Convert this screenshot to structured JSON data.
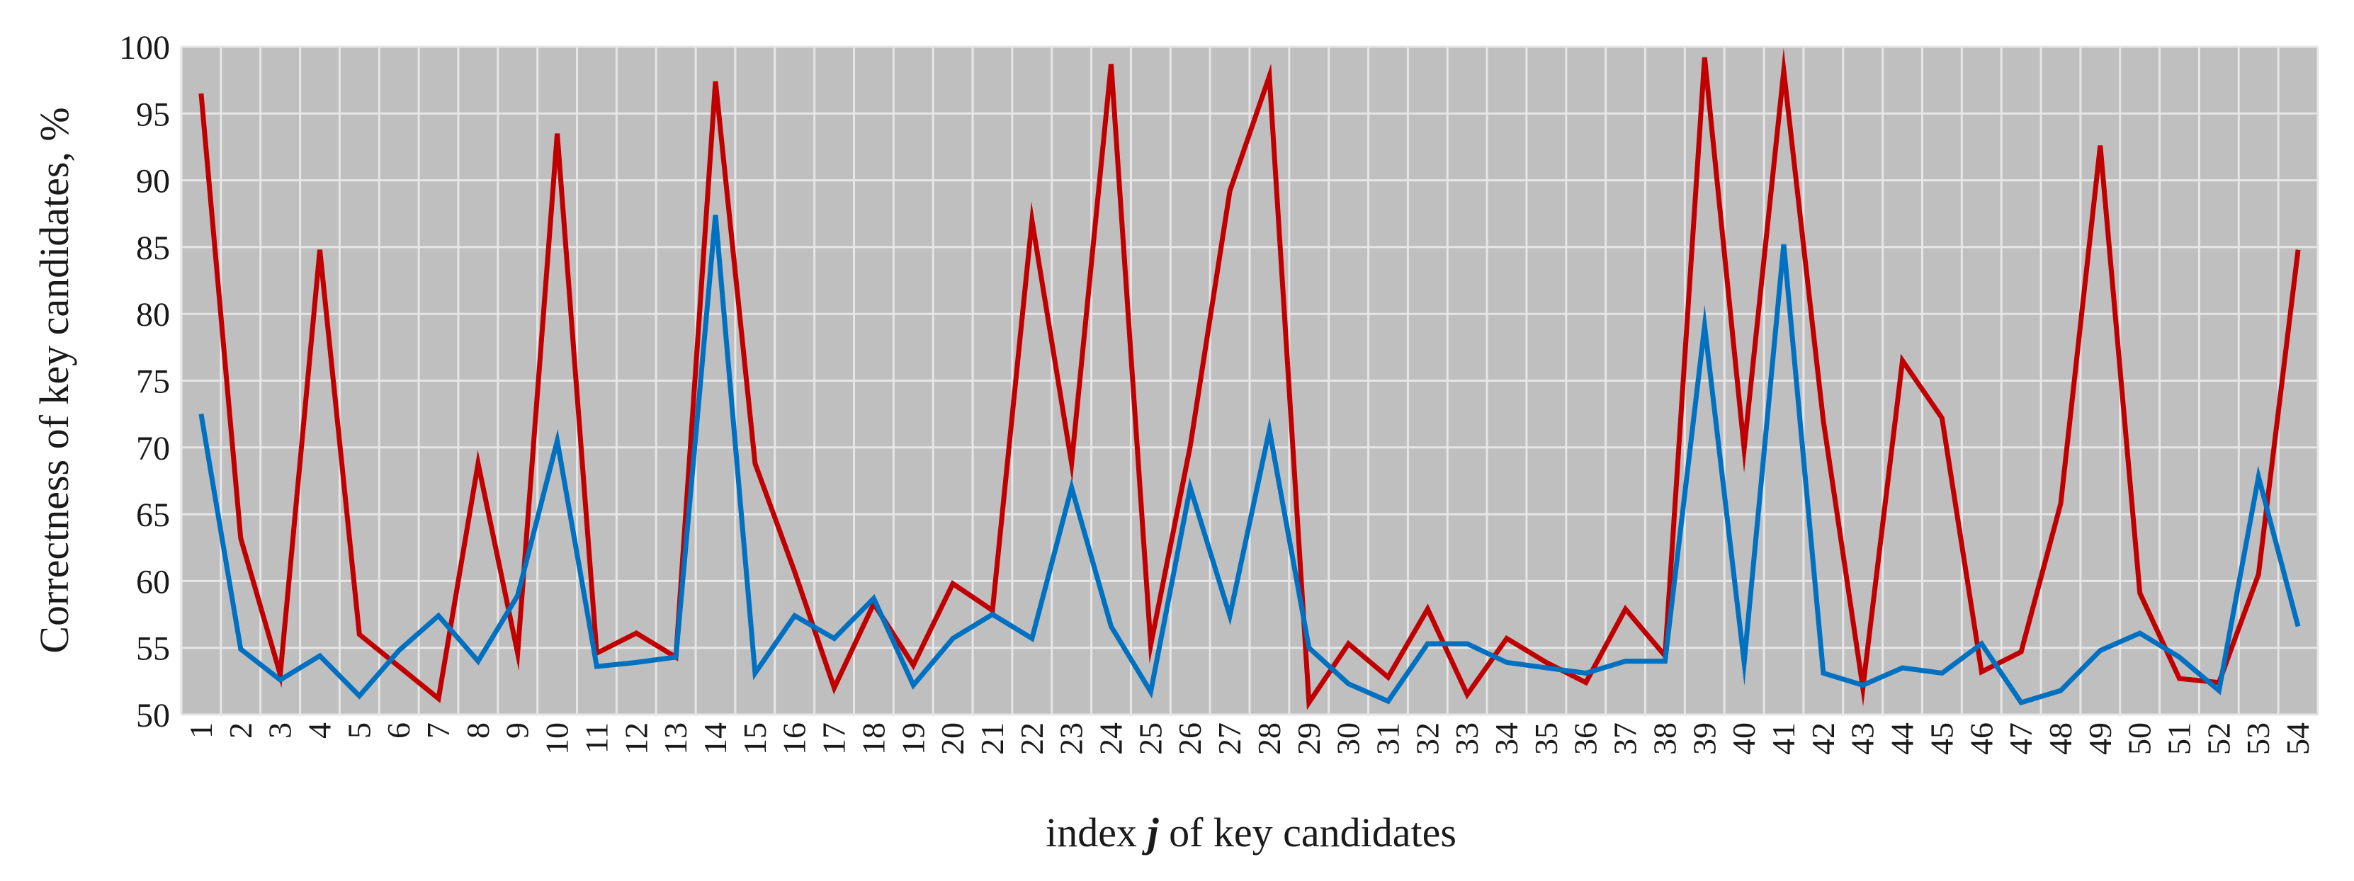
{
  "chart_data": {
    "type": "line",
    "xlabel_prefix": "index ",
    "xlabel_var": "j",
    "xlabel_suffix": " of key candidates",
    "ylabel": "Correctness of key candidates, %",
    "ylim": [
      50,
      100
    ],
    "yticks": [
      50,
      55,
      60,
      65,
      70,
      75,
      80,
      85,
      90,
      95,
      100
    ],
    "grid": true,
    "legend": "none",
    "x": [
      1,
      2,
      3,
      4,
      5,
      6,
      7,
      8,
      9,
      10,
      11,
      12,
      13,
      14,
      15,
      16,
      17,
      18,
      19,
      20,
      21,
      22,
      23,
      24,
      25,
      26,
      27,
      28,
      29,
      30,
      31,
      32,
      33,
      34,
      35,
      36,
      37,
      38,
      39,
      40,
      41,
      42,
      43,
      44,
      45,
      46,
      47,
      48,
      49,
      50,
      51,
      52,
      53,
      54
    ],
    "series": [
      {
        "color": "#c00000",
        "values": [
          96.5,
          63.2,
          53,
          84.8,
          56,
          53.6,
          51.2,
          68.8,
          54.6,
          93.5,
          54.6,
          56.1,
          54.3,
          97.4,
          68.8,
          60.7,
          52,
          58.3,
          53.7,
          59.8,
          57.8,
          87,
          68.8,
          98.7,
          55.2,
          70.1,
          89.2,
          97.8,
          50.9,
          55.3,
          52.8,
          57.9,
          51.5,
          55.7,
          53.9,
          52.4,
          57.9,
          54.4,
          99.2,
          69.9,
          98.2,
          72,
          52,
          76.5,
          72.2,
          53.2,
          54.7,
          65.8,
          92.6,
          59.1,
          52.7,
          52.4,
          60.5,
          84.8
        ]
      },
      {
        "color": "#0070c0",
        "values": [
          72.5,
          54.9,
          52.6,
          54.4,
          51.4,
          54.8,
          57.4,
          54,
          58.9,
          70.5,
          53.6,
          53.9,
          54.3,
          87.4,
          53.1,
          57.4,
          55.7,
          58.7,
          52.2,
          55.7,
          57.5,
          55.7,
          67,
          56.6,
          51.7,
          67,
          57.4,
          71.3,
          55,
          52.3,
          51,
          55.3,
          55.3,
          53.9,
          53.5,
          53.1,
          54,
          54,
          79.1,
          53.9,
          85.2,
          53.1,
          52.2,
          53.5,
          53.1,
          55.3,
          50.9,
          51.8,
          54.8,
          56.1,
          54.3,
          51.8,
          67.8,
          56.6
        ]
      }
    ]
  }
}
